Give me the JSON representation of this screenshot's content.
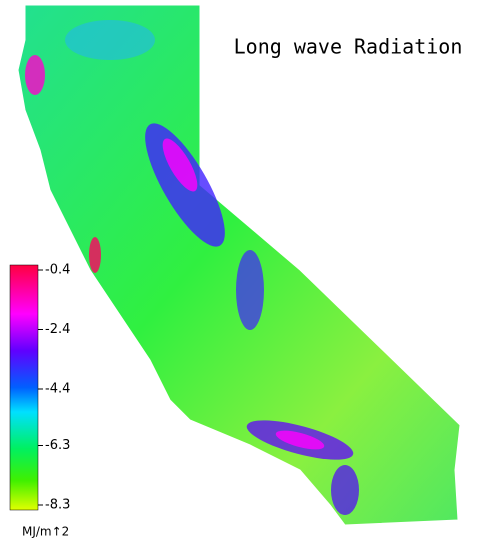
{
  "title": "Long wave Radiation",
  "colorbar": {
    "ticks": [
      -0.4,
      -2.4,
      -4.4,
      -6.3,
      -8.3
    ],
    "unit": "MJ/m↑2"
  }
}
